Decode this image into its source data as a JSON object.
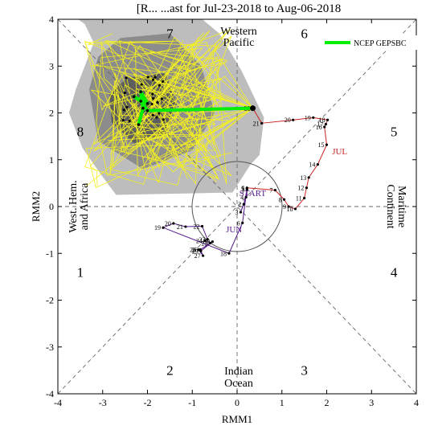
{
  "chart_data": {
    "type": "line",
    "title": "[R... ...ast for Jul-23-2018 to Aug-06-2018",
    "xlabel": "RMM1",
    "ylabel": "RMM2",
    "xlim": [
      -4,
      4
    ],
    "ylim": [
      -4,
      4
    ],
    "xticks": [
      "-4",
      "-3",
      "-2",
      "-1",
      "0",
      "1",
      "2",
      "3",
      "4"
    ],
    "yticks": [
      "-4",
      "-3",
      "-2",
      "-1",
      "0",
      "1",
      "2",
      "3",
      "4"
    ],
    "grid": false,
    "legend_position": "top-right",
    "legend": [
      {
        "name": "NCEP GEPSBC",
        "color": "#00ee00"
      }
    ],
    "phase_numbers": [
      {
        "label": "1",
        "x": -3.5,
        "y": -1.5
      },
      {
        "label": "2",
        "x": -1.5,
        "y": -3.6
      },
      {
        "label": "3",
        "x": 1.5,
        "y": -3.6
      },
      {
        "label": "4",
        "x": 3.5,
        "y": -1.5
      },
      {
        "label": "5",
        "x": 3.5,
        "y": 1.5
      },
      {
        "label": "6",
        "x": 1.5,
        "y": 3.6
      },
      {
        "label": "7",
        "x": -1.5,
        "y": 3.6
      },
      {
        "label": "8",
        "x": -3.5,
        "y": 1.5
      }
    ],
    "region_labels": {
      "top": [
        "Western",
        "Pacific"
      ],
      "bottom": [
        "Indian",
        "Ocean"
      ],
      "left": [
        "West. Hem.",
        "and Africa"
      ],
      "right": [
        "Maritime",
        "Continent"
      ]
    },
    "month_labels": [
      {
        "label": "JUN",
        "x": -0.25,
        "y": -0.55,
        "color": "#551a8b"
      },
      {
        "label": "JUL",
        "x": 2.12,
        "y": 1.12,
        "color": "#cc2222"
      },
      {
        "label": "START",
        "x": 0.05,
        "y": 0.22,
        "color": "#551a8b"
      }
    ],
    "series": [
      {
        "name": "June",
        "color": "#551a8b",
        "points": [
          {
            "x": 0.22,
            "y": 0.35,
            "label": "1"
          },
          {
            "x": 0.15,
            "y": 0.05,
            "label": "2"
          },
          {
            "x": 0.08,
            "y": -0.12,
            "label": "3"
          },
          {
            "x": 0.2,
            "y": 0.2,
            "label": "4"
          },
          {
            "x": 0.22,
            "y": 0.38,
            "label": "5"
          },
          {
            "x": 0.12,
            "y": -0.35,
            "label": "6"
          },
          {
            "x": -0.18,
            "y": -1.0,
            "label": "18"
          },
          {
            "x": -1.65,
            "y": -0.45,
            "label": "19"
          },
          {
            "x": -1.42,
            "y": -0.36,
            "label": "20"
          },
          {
            "x": -1.15,
            "y": -0.43,
            "label": "21"
          },
          {
            "x": -0.78,
            "y": -0.42,
            "label": "22"
          },
          {
            "x": -0.66,
            "y": -0.7,
            "label": "23"
          },
          {
            "x": -0.72,
            "y": -0.73,
            "label": "24"
          },
          {
            "x": -0.6,
            "y": -0.78,
            "label": "25"
          },
          {
            "x": -0.82,
            "y": -0.92,
            "label": "26"
          },
          {
            "x": -0.76,
            "y": -1.05,
            "label": "27"
          },
          {
            "x": -0.86,
            "y": -0.92,
            "label": "28"
          },
          {
            "x": -0.81,
            "y": -0.95,
            "label": "29"
          },
          {
            "x": -0.55,
            "y": -0.75,
            "label": "30"
          }
        ]
      },
      {
        "name": "July",
        "color": "#cc2222",
        "points": [
          {
            "x": 0.22,
            "y": 0.4,
            "label": "6"
          },
          {
            "x": 0.85,
            "y": 0.35,
            "label": "7"
          },
          {
            "x": 1.05,
            "y": 0.15,
            "label": "8"
          },
          {
            "x": 1.15,
            "y": 0.0,
            "label": "9"
          },
          {
            "x": 1.3,
            "y": -0.05,
            "label": "10"
          },
          {
            "x": 1.5,
            "y": 0.18,
            "label": "11"
          },
          {
            "x": 1.55,
            "y": 0.4,
            "label": "12"
          },
          {
            "x": 1.6,
            "y": 0.62,
            "label": "13"
          },
          {
            "x": 1.8,
            "y": 0.9,
            "label": "14"
          },
          {
            "x": 2.0,
            "y": 1.32,
            "label": "15"
          },
          {
            "x": 1.95,
            "y": 1.7,
            "label": "16"
          },
          {
            "x": 1.98,
            "y": 1.76,
            "label": "17"
          },
          {
            "x": 2.02,
            "y": 1.85,
            "label": "18"
          },
          {
            "x": 1.7,
            "y": 1.9,
            "label": "19"
          },
          {
            "x": 1.25,
            "y": 1.85,
            "label": "20"
          },
          {
            "x": 0.55,
            "y": 1.78,
            "label": "21"
          },
          {
            "x": 0.35,
            "y": 2.1,
            "label": "22"
          }
        ]
      },
      {
        "name": "NCEP GEPSBC",
        "color": "#00ee00",
        "points": [
          {
            "x": 0.35,
            "y": 2.1
          },
          {
            "x": -2.0,
            "y": 2.05
          },
          {
            "x": -2.15,
            "y": 2.25
          },
          {
            "x": -2.3,
            "y": 2.35
          },
          {
            "x": -2.0,
            "y": 2.2
          },
          {
            "x": -2.15,
            "y": 2.45
          },
          {
            "x": -2.1,
            "y": 2.1
          },
          {
            "x": -2.2,
            "y": 1.75
          }
        ]
      }
    ]
  }
}
